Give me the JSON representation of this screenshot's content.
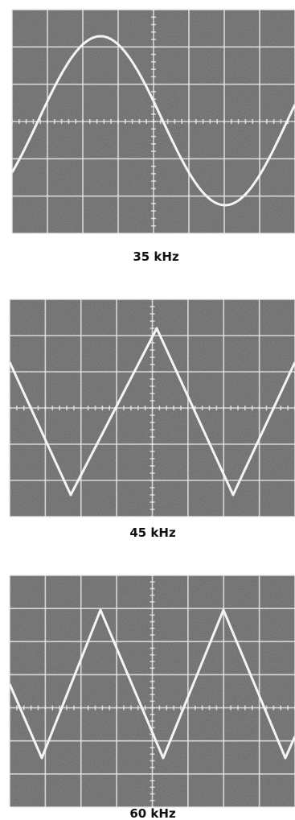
{
  "figure": {
    "panels": [
      {
        "caption": "35 kHz"
      },
      {
        "caption": "45 kHz"
      },
      {
        "caption": "60 kHz"
      }
    ]
  }
}
